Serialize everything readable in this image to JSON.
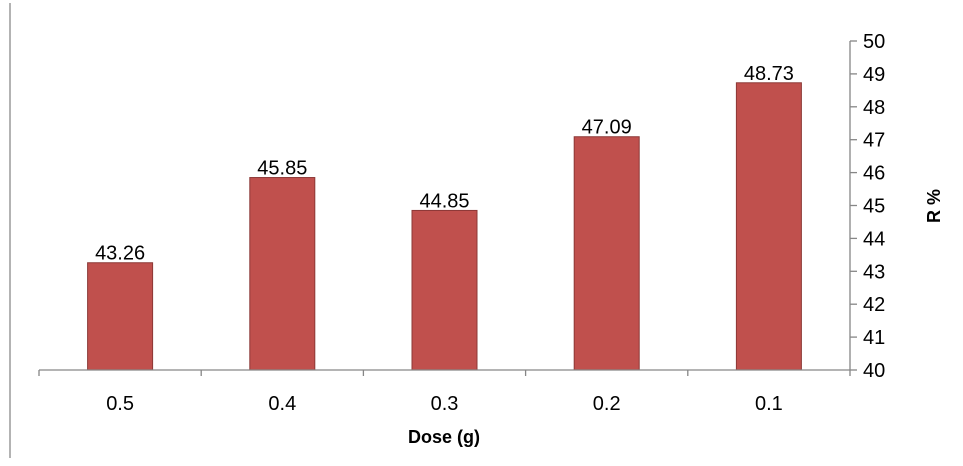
{
  "chart_data": {
    "type": "bar",
    "categories": [
      "0.5",
      "0.4",
      "0.3",
      "0.2",
      "0.1"
    ],
    "values": [
      43.26,
      45.85,
      44.85,
      47.09,
      48.73
    ],
    "data_labels": [
      "43.26",
      "45.85",
      "44.85",
      "47.09",
      "48.73"
    ],
    "title": "",
    "xlabel": "Dose (g)",
    "ylabel": "R %",
    "ylim": [
      40,
      50
    ],
    "y_ticks": [
      "40",
      "41",
      "42",
      "43",
      "44",
      "45",
      "46",
      "47",
      "48",
      "49",
      "50"
    ],
    "y_axis_side": "right",
    "grid": false,
    "legend": "none",
    "bar_color": "#C0504D",
    "bar_edge_color": "#8C3836"
  }
}
